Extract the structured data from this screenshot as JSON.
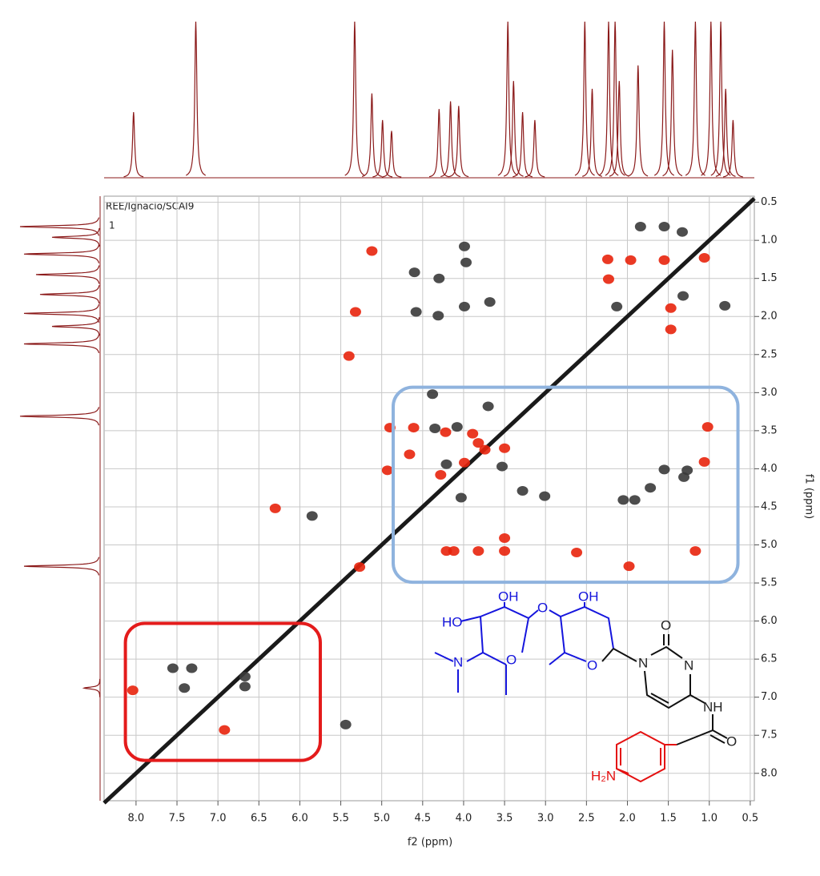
{
  "chart_data": {
    "type": "scatter",
    "header_label": "REE/Ignacio/SCAI9",
    "header_index": "1",
    "xlabel": "f2 (ppm)",
    "ylabel": "f1 (ppm)",
    "xlim": [
      8.39,
      0.45
    ],
    "ylim": [
      0.42,
      8.36
    ],
    "xticks": [
      {
        "value": 8,
        "label": "8.0"
      },
      7.5,
      {
        "value": 7,
        "label": "7.0"
      },
      6.5,
      {
        "value": 6,
        "label": "6.0"
      },
      5.5,
      {
        "value": 5,
        "label": "5.0"
      },
      4.5,
      {
        "value": 4,
        "label": "4.0"
      },
      3.5,
      {
        "value": 3,
        "label": "3.0"
      },
      2.5,
      {
        "value": 2,
        "label": "2.0"
      },
      1.5,
      {
        "value": 1,
        "label": "1.0"
      },
      0.5
    ],
    "yticks": [
      0.5,
      {
        "value": 1,
        "label": "1.0"
      },
      1.5,
      {
        "value": 2,
        "label": "2.0"
      },
      2.5,
      {
        "value": 3,
        "label": "3.0"
      },
      3.5,
      {
        "value": 4,
        "label": "4.0"
      },
      4.5,
      {
        "value": 5,
        "label": "5.0"
      },
      5.5,
      {
        "value": 6,
        "label": "6.0"
      },
      6.5,
      {
        "value": 7,
        "label": "7.0"
      },
      7.5,
      {
        "value": 8,
        "label": "8.0"
      }
    ],
    "grid": true,
    "diagonal_color": "#1a1a1a",
    "series": [
      {
        "color": "#e8240c",
        "x": [
          5.12,
          5.32,
          5.4,
          2.24,
          1.96,
          1.55,
          1.06,
          1.47,
          2.23,
          1.47,
          4.9,
          4.61,
          4.22,
          3.89,
          3.82,
          4.93,
          4.66,
          4.28,
          3.99,
          3.74,
          3.5,
          4.21,
          4.12,
          3.82,
          3.5,
          3.5,
          2.62,
          1.98,
          1.17,
          1.06,
          1.02,
          8.04,
          6.92,
          6.3,
          5.27
        ],
        "y": [
          1.14,
          1.94,
          2.52,
          1.25,
          1.26,
          1.26,
          1.23,
          2.17,
          1.51,
          1.89,
          3.46,
          3.46,
          3.52,
          3.54,
          3.66,
          4.02,
          3.81,
          4.08,
          3.92,
          3.75,
          3.73,
          5.08,
          5.08,
          5.08,
          5.08,
          4.91,
          5.1,
          5.28,
          5.08,
          3.91,
          3.45,
          6.91,
          7.43,
          4.52,
          5.29
        ]
      },
      {
        "color": "#3a3a3a",
        "x": [
          3.99,
          3.97,
          4.3,
          4.6,
          3.99,
          4.58,
          4.31,
          3.68,
          1.84,
          1.55,
          1.33,
          2.13,
          0.81,
          1.32,
          4.35,
          4.08,
          4.21,
          4.03,
          3.53,
          3.28,
          3.01,
          1.72,
          1.91,
          2.05,
          1.55,
          1.27,
          1.31,
          4.38,
          3.7,
          5.44,
          5.85,
          7.55,
          7.32,
          6.67,
          6.67,
          7.41
        ],
        "y": [
          1.08,
          1.29,
          1.5,
          1.42,
          1.87,
          1.94,
          1.99,
          1.81,
          0.82,
          0.82,
          0.89,
          1.87,
          1.86,
          1.73,
          3.47,
          3.45,
          3.94,
          4.38,
          3.97,
          4.29,
          4.36,
          4.25,
          4.41,
          4.41,
          4.01,
          4.02,
          4.11,
          3.02,
          3.18,
          7.36,
          4.62,
          6.62,
          6.62,
          6.73,
          6.86,
          6.88
        ]
      }
    ],
    "regions": [
      {
        "color": "#8fb3de",
        "xlim": [
          4.86,
          0.65
        ],
        "ylim": [
          2.93,
          5.49
        ]
      },
      {
        "color": "#e41b1b",
        "xlim": [
          8.13,
          5.75
        ],
        "ylim": [
          6.03,
          7.83
        ]
      }
    ],
    "f2_projection": {
      "color": "#8b1a1a",
      "x": [
        8.03,
        7.27,
        5.33,
        5.12,
        4.99,
        4.88,
        4.3,
        4.16,
        4.06,
        3.46,
        3.39,
        3.28,
        3.13,
        2.52,
        2.43,
        2.23,
        2.15,
        2.1,
        1.87,
        1.55,
        1.45,
        1.17,
        0.98,
        0.86,
        0.8,
        0.71
      ],
      "values": [
        42,
        100,
        100,
        54,
        37,
        30,
        44,
        49,
        46,
        100,
        62,
        42,
        37,
        100,
        57,
        100,
        100,
        62,
        72,
        100,
        82,
        100,
        100,
        100,
        57,
        37
      ]
    },
    "f1_projection": {
      "color": "#8b1a1a",
      "y": [
        0.82,
        0.96,
        1.18,
        1.45,
        1.71,
        1.96,
        2.13,
        2.36,
        3.31,
        5.28,
        6.88
      ],
      "values": [
        100,
        60,
        95,
        80,
        75,
        95,
        60,
        95,
        100,
        95,
        20
      ]
    },
    "structure_labels": [
      "HO",
      "OH",
      "O",
      "OH",
      "O",
      "O",
      "N",
      "N",
      "O",
      "N",
      "NH",
      "O",
      "H₂N"
    ]
  }
}
